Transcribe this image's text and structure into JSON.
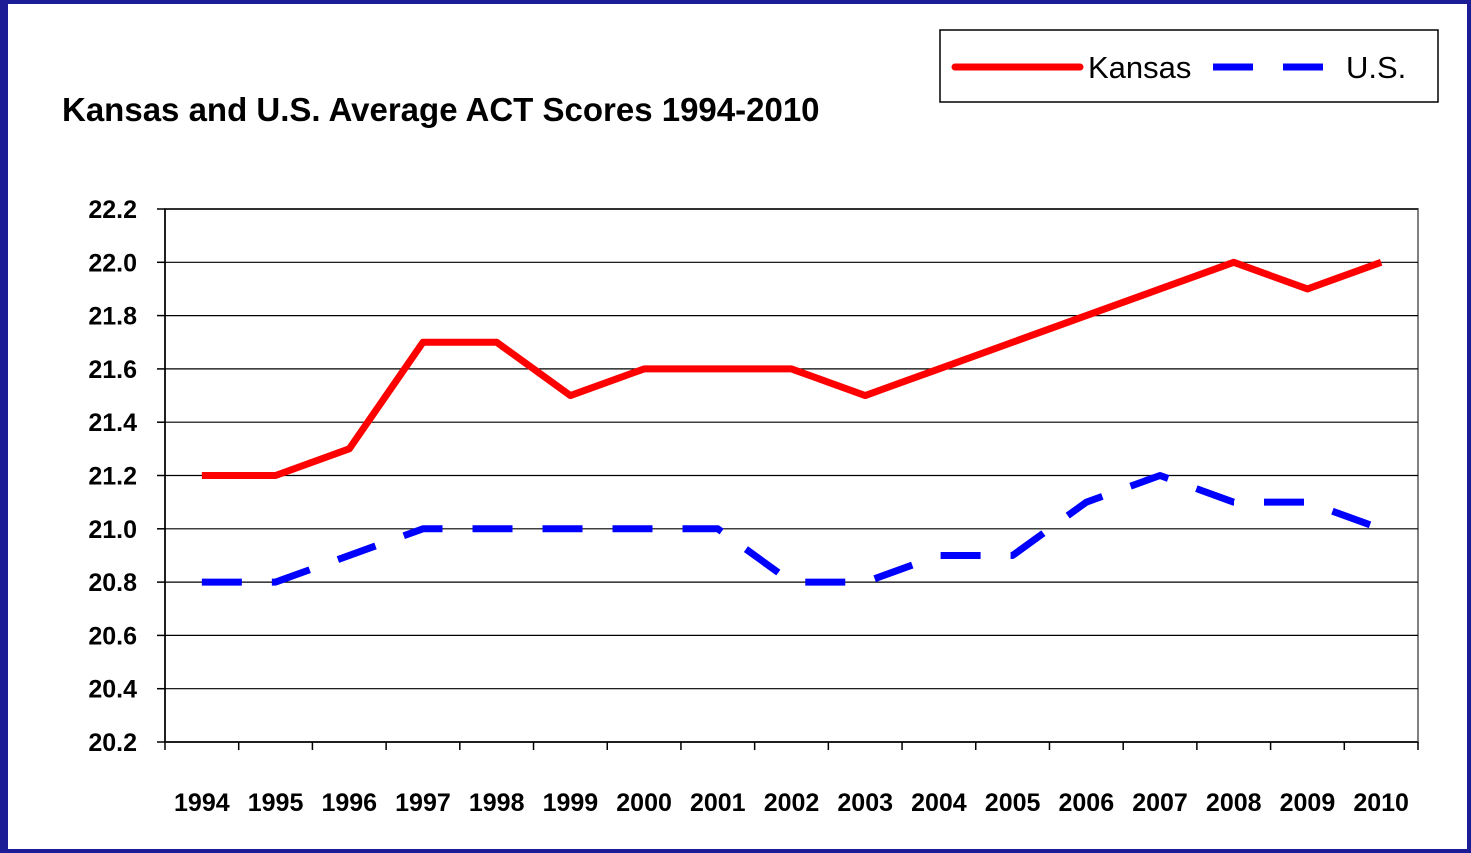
{
  "chart_data": {
    "type": "line",
    "title": "Kansas and U.S. Average ACT Scores 1994-2010",
    "categories": [
      "1994",
      "1995",
      "1996",
      "1997",
      "1998",
      "1999",
      "2000",
      "2001",
      "2002",
      "2003",
      "2004",
      "2005",
      "2006",
      "2007",
      "2008",
      "2009",
      "2010"
    ],
    "series": [
      {
        "name": "Kansas",
        "color": "#ff0000",
        "dashed": false,
        "values": [
          21.2,
          21.2,
          21.3,
          21.7,
          21.7,
          21.5,
          21.6,
          21.6,
          21.6,
          21.5,
          21.6,
          21.7,
          21.8,
          21.9,
          22.0,
          21.9,
          22.0
        ]
      },
      {
        "name": "U.S.",
        "color": "#0000ff",
        "dashed": true,
        "values": [
          20.8,
          20.8,
          20.9,
          21.0,
          21.0,
          21.0,
          21.0,
          21.0,
          20.8,
          20.8,
          20.9,
          20.9,
          21.1,
          21.2,
          21.1,
          21.1,
          21.0
        ]
      }
    ],
    "ylim": [
      20.2,
      22.2
    ],
    "yticks": [
      20.2,
      20.4,
      20.6,
      20.8,
      {
        "value": 21,
        "label": "21.0"
      },
      21.2,
      21.4,
      21.6,
      21.8,
      {
        "value": 22,
        "label": "22.0"
      },
      22.2
    ],
    "grid": true,
    "legend": "top-right"
  }
}
